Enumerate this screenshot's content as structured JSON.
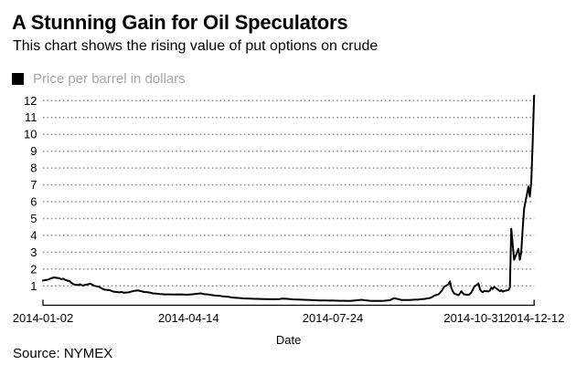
{
  "header": {
    "title": "A Stunning Gain for Oil Speculators",
    "subtitle": "This chart shows the rising value of put options on crude"
  },
  "legend": {
    "label": "Price per barrel in dollars",
    "swatch_color": "#000000",
    "label_color": "#a8a8a8"
  },
  "footer": {
    "source": "Source: NYMEX"
  },
  "colors": {
    "line": "#000000",
    "grid": "#8c8c8c",
    "axis": "#000000",
    "legend_text": "#a8a8a8"
  },
  "chart_data": {
    "type": "line",
    "title": "A Stunning Gain for Oil Speculators",
    "subtitle": "This chart shows the rising value of put options on crude",
    "xlabel": "Date",
    "ylabel": "",
    "source": "Source: NYMEX",
    "legend_position": "top-left",
    "grid": "horizontal-dotted",
    "x_range": [
      "2014-01-02",
      "2014-12-12"
    ],
    "ylim": [
      0,
      12.5
    ],
    "y_ticks": [
      1,
      2,
      3,
      4,
      5,
      6,
      7,
      8,
      9,
      10,
      11,
      12
    ],
    "x_tick_labels": [
      "2014-01-02",
      "2014-04-14",
      "2014-07-24",
      "2014-10-31",
      "2014-12-12"
    ],
    "series": [
      {
        "name": "Price per barrel in dollars",
        "color": "#000000",
        "points": [
          [
            "2014-01-02",
            1.32
          ],
          [
            "2014-01-03",
            1.34
          ],
          [
            "2014-01-06",
            1.38
          ],
          [
            "2014-01-07",
            1.43
          ],
          [
            "2014-01-08",
            1.46
          ],
          [
            "2014-01-09",
            1.49
          ],
          [
            "2014-01-10",
            1.5
          ],
          [
            "2014-01-13",
            1.47
          ],
          [
            "2014-01-14",
            1.43
          ],
          [
            "2014-01-15",
            1.4
          ],
          [
            "2014-01-16",
            1.43
          ],
          [
            "2014-01-17",
            1.38
          ],
          [
            "2014-01-21",
            1.26
          ],
          [
            "2014-01-22",
            1.18
          ],
          [
            "2014-01-23",
            1.12
          ],
          [
            "2014-01-24",
            1.08
          ],
          [
            "2014-01-27",
            1.05
          ],
          [
            "2014-01-28",
            1.1
          ],
          [
            "2014-01-29",
            1.06
          ],
          [
            "2014-01-30",
            1.02
          ],
          [
            "2014-01-31",
            1.05
          ],
          [
            "2014-02-03",
            1.1
          ],
          [
            "2014-02-04",
            1.14
          ],
          [
            "2014-02-05",
            1.1
          ],
          [
            "2014-02-06",
            1.05
          ],
          [
            "2014-02-07",
            1.0
          ],
          [
            "2014-02-10",
            0.96
          ],
          [
            "2014-02-11",
            0.91
          ],
          [
            "2014-02-12",
            0.86
          ],
          [
            "2014-02-13",
            0.82
          ],
          [
            "2014-02-14",
            0.78
          ],
          [
            "2014-02-18",
            0.74
          ],
          [
            "2014-02-19",
            0.7
          ],
          [
            "2014-02-20",
            0.67
          ],
          [
            "2014-02-21",
            0.65
          ],
          [
            "2014-02-24",
            0.63
          ],
          [
            "2014-02-25",
            0.62
          ],
          [
            "2014-02-26",
            0.64
          ],
          [
            "2014-02-27",
            0.61
          ],
          [
            "2014-02-28",
            0.6
          ],
          [
            "2014-03-03",
            0.62
          ],
          [
            "2014-03-04",
            0.64
          ],
          [
            "2014-03-05",
            0.67
          ],
          [
            "2014-03-06",
            0.69
          ],
          [
            "2014-03-07",
            0.71
          ],
          [
            "2014-03-10",
            0.73
          ],
          [
            "2014-03-11",
            0.7
          ],
          [
            "2014-03-12",
            0.68
          ],
          [
            "2014-03-13",
            0.66
          ],
          [
            "2014-03-14",
            0.64
          ],
          [
            "2014-03-17",
            0.62
          ],
          [
            "2014-03-18",
            0.6
          ],
          [
            "2014-03-19",
            0.58
          ],
          [
            "2014-03-20",
            0.56
          ],
          [
            "2014-03-21",
            0.55
          ],
          [
            "2014-03-24",
            0.53
          ],
          [
            "2014-03-25",
            0.52
          ],
          [
            "2014-03-27",
            0.51
          ],
          [
            "2014-03-28",
            0.5
          ],
          [
            "2014-03-31",
            0.5
          ],
          [
            "2014-04-02",
            0.5
          ],
          [
            "2014-04-04",
            0.49
          ],
          [
            "2014-04-08",
            0.5
          ],
          [
            "2014-04-10",
            0.49
          ],
          [
            "2014-04-14",
            0.48
          ],
          [
            "2014-04-16",
            0.5
          ],
          [
            "2014-04-21",
            0.54
          ],
          [
            "2014-04-22",
            0.56
          ],
          [
            "2014-04-23",
            0.55
          ],
          [
            "2014-04-24",
            0.53
          ],
          [
            "2014-04-25",
            0.51
          ],
          [
            "2014-04-28",
            0.49
          ],
          [
            "2014-04-30",
            0.46
          ],
          [
            "2014-05-02",
            0.44
          ],
          [
            "2014-05-06",
            0.41
          ],
          [
            "2014-05-08",
            0.38
          ],
          [
            "2014-05-12",
            0.35
          ],
          [
            "2014-05-14",
            0.32
          ],
          [
            "2014-05-16",
            0.3
          ],
          [
            "2014-05-20",
            0.28
          ],
          [
            "2014-05-22",
            0.26
          ],
          [
            "2014-05-27",
            0.25
          ],
          [
            "2014-05-29",
            0.24
          ],
          [
            "2014-06-03",
            0.23
          ],
          [
            "2014-06-06",
            0.22
          ],
          [
            "2014-06-10",
            0.21
          ],
          [
            "2014-06-13",
            0.21
          ],
          [
            "2014-06-17",
            0.22
          ],
          [
            "2014-06-18",
            0.24
          ],
          [
            "2014-06-20",
            0.25
          ],
          [
            "2014-06-24",
            0.22
          ],
          [
            "2014-06-26",
            0.2
          ],
          [
            "2014-06-30",
            0.19
          ],
          [
            "2014-07-03",
            0.18
          ],
          [
            "2014-07-08",
            0.16
          ],
          [
            "2014-07-11",
            0.15
          ],
          [
            "2014-07-15",
            0.14
          ],
          [
            "2014-07-18",
            0.14
          ],
          [
            "2014-07-22",
            0.13
          ],
          [
            "2014-07-24",
            0.13
          ],
          [
            "2014-07-29",
            0.12
          ],
          [
            "2014-08-01",
            0.12
          ],
          [
            "2014-08-05",
            0.11
          ],
          [
            "2014-08-08",
            0.13
          ],
          [
            "2014-08-12",
            0.16
          ],
          [
            "2014-08-13",
            0.18
          ],
          [
            "2014-08-15",
            0.15
          ],
          [
            "2014-08-19",
            0.12
          ],
          [
            "2014-08-22",
            0.11
          ],
          [
            "2014-08-26",
            0.11
          ],
          [
            "2014-08-29",
            0.12
          ],
          [
            "2014-09-02",
            0.15
          ],
          [
            "2014-09-03",
            0.2
          ],
          [
            "2014-09-04",
            0.24
          ],
          [
            "2014-09-05",
            0.26
          ],
          [
            "2014-09-08",
            0.22
          ],
          [
            "2014-09-09",
            0.19
          ],
          [
            "2014-09-10",
            0.17
          ],
          [
            "2014-09-12",
            0.16
          ],
          [
            "2014-09-16",
            0.17
          ],
          [
            "2014-09-18",
            0.18
          ],
          [
            "2014-09-22",
            0.19
          ],
          [
            "2014-09-24",
            0.21
          ],
          [
            "2014-09-26",
            0.23
          ],
          [
            "2014-09-30",
            0.28
          ],
          [
            "2014-10-01",
            0.32
          ],
          [
            "2014-10-02",
            0.36
          ],
          [
            "2014-10-03",
            0.42
          ],
          [
            "2014-10-06",
            0.5
          ],
          [
            "2014-10-07",
            0.58
          ],
          [
            "2014-10-08",
            0.68
          ],
          [
            "2014-10-09",
            0.8
          ],
          [
            "2014-10-10",
            0.95
          ],
          [
            "2014-10-13",
            1.1
          ],
          [
            "2014-10-14",
            1.27
          ],
          [
            "2014-10-15",
            0.9
          ],
          [
            "2014-10-16",
            0.68
          ],
          [
            "2014-10-17",
            0.55
          ],
          [
            "2014-10-20",
            0.45
          ],
          [
            "2014-10-21",
            0.55
          ],
          [
            "2014-10-22",
            0.68
          ],
          [
            "2014-10-23",
            0.58
          ],
          [
            "2014-10-24",
            0.5
          ],
          [
            "2014-10-27",
            0.46
          ],
          [
            "2014-10-28",
            0.52
          ],
          [
            "2014-10-29",
            0.6
          ],
          [
            "2014-10-30",
            0.78
          ],
          [
            "2014-10-31",
            0.95
          ],
          [
            "2014-11-03",
            1.15
          ],
          [
            "2014-11-04",
            0.82
          ],
          [
            "2014-11-05",
            0.68
          ],
          [
            "2014-11-06",
            0.63
          ],
          [
            "2014-11-07",
            0.7
          ],
          [
            "2014-11-10",
            0.67
          ],
          [
            "2014-11-11",
            0.72
          ],
          [
            "2014-11-12",
            0.9
          ],
          [
            "2014-11-13",
            0.82
          ],
          [
            "2014-11-14",
            0.94
          ],
          [
            "2014-11-17",
            0.76
          ],
          [
            "2014-11-18",
            0.68
          ],
          [
            "2014-11-19",
            0.74
          ],
          [
            "2014-11-20",
            0.66
          ],
          [
            "2014-11-21",
            0.7
          ],
          [
            "2014-11-24",
            0.76
          ],
          [
            "2014-11-25",
            0.92
          ],
          [
            "2014-11-26",
            4.4
          ],
          [
            "2014-11-28",
            2.55
          ],
          [
            "2014-12-01",
            3.2
          ],
          [
            "2014-12-02",
            2.55
          ],
          [
            "2014-12-03",
            3.0
          ],
          [
            "2014-12-04",
            4.4
          ],
          [
            "2014-12-05",
            5.6
          ],
          [
            "2014-12-08",
            6.9
          ],
          [
            "2014-12-09",
            6.3
          ],
          [
            "2014-12-10",
            7.2
          ],
          [
            "2014-12-11",
            9.5
          ],
          [
            "2014-12-12",
            12.3
          ]
        ]
      }
    ]
  }
}
